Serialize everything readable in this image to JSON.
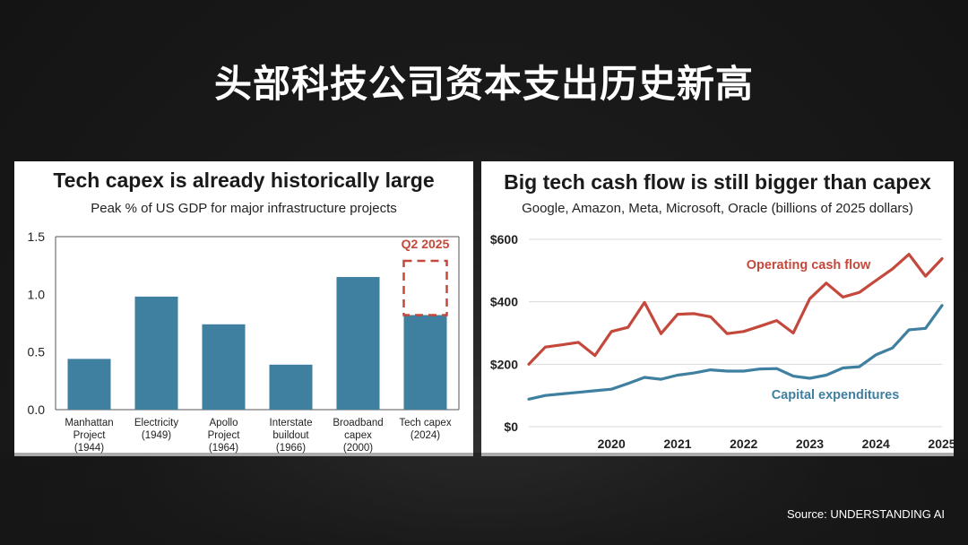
{
  "slide": {
    "title": "头部科技公司资本支出历史新高",
    "source": "Source: UNDERSTANDING AI"
  },
  "colors": {
    "bar": "#3f7f9f",
    "cash_flow": "#c4483b",
    "capex": "#3f7f9f",
    "highlight": "#c4483b"
  },
  "chart_data": [
    {
      "type": "bar",
      "title": "Tech capex is already historically large",
      "subtitle": "Peak % of US GDP for major infrastructure projects",
      "categories": [
        [
          "Manhattan",
          "Project",
          "(1944)"
        ],
        [
          "Electricity",
          "(1949)"
        ],
        [
          "Apollo",
          "Project",
          "(1964)"
        ],
        [
          "Interstate",
          "buildout",
          "(1966)"
        ],
        [
          "Broadband",
          "capex",
          "(2000)"
        ],
        [
          "Tech capex",
          "(2024)"
        ]
      ],
      "values": [
        0.44,
        0.98,
        0.74,
        0.39,
        1.15,
        0.82
      ],
      "ylim": [
        0,
        1.5
      ],
      "yticks": [
        "0.0",
        "0.5",
        "1.0",
        "1.5"
      ],
      "highlight": {
        "category_index": 5,
        "label": "Q2 2025",
        "value": 1.29
      },
      "grid": false
    },
    {
      "type": "line",
      "title": "Big tech cash flow is still bigger than capex",
      "subtitle": "Google, Amazon, Meta, Microsoft, Oracle (billions of 2025 dollars)",
      "x": [
        "2019-Q2",
        "2019-Q3",
        "2019-Q4",
        "2020-Q1",
        "2020-Q2",
        "2020-Q3",
        "2020-Q4",
        "2021-Q1",
        "2021-Q2",
        "2021-Q3",
        "2021-Q4",
        "2022-Q1",
        "2022-Q2",
        "2022-Q3",
        "2022-Q4",
        "2023-Q1",
        "2023-Q2",
        "2023-Q3",
        "2023-Q4",
        "2024-Q1",
        "2024-Q2",
        "2024-Q3",
        "2024-Q4",
        "2025-Q1",
        "2025-Q2",
        "2025-Q3"
      ],
      "xticks": [
        "2020",
        "2021",
        "2022",
        "2023",
        "2024",
        "2025"
      ],
      "yticks": [
        "$0",
        "$200",
        "$400",
        "$600"
      ],
      "ylim": [
        0,
        600
      ],
      "grid": true,
      "series": [
        {
          "name": "Operating cash flow",
          "values": [
            200,
            255,
            262,
            270,
            228,
            305,
            318,
            398,
            298,
            360,
            362,
            352,
            298,
            305,
            322,
            340,
            300,
            410,
            460,
            415,
            430,
            468,
            505,
            552,
            482,
            538
          ]
        },
        {
          "name": "Capital expenditures",
          "values": [
            88,
            100,
            105,
            110,
            115,
            120,
            138,
            158,
            152,
            165,
            172,
            182,
            178,
            178,
            185,
            186,
            162,
            155,
            165,
            188,
            192,
            230,
            252,
            310,
            315,
            388
          ]
        }
      ]
    }
  ]
}
